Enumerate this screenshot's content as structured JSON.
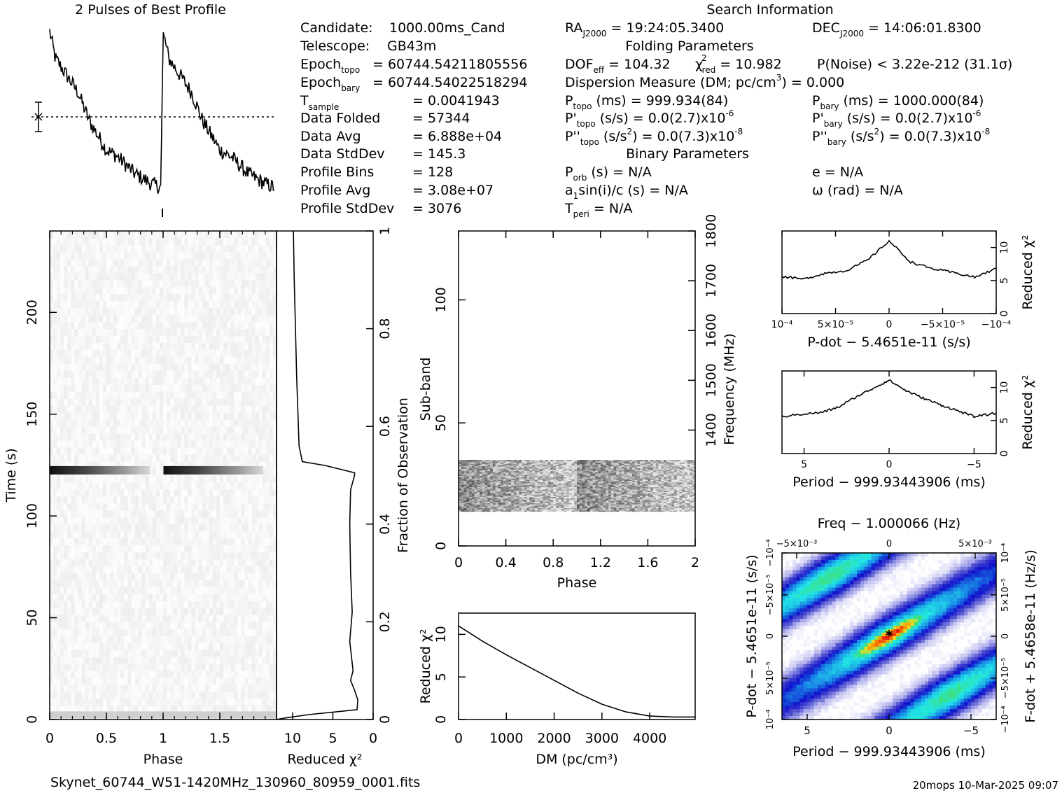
{
  "header": {
    "profile_title": "2 Pulses of Best Profile",
    "search_title": "Search Information",
    "file_name": "Skynet_60744_W51-1420MHz_130960_80959_0001.fits",
    "footer_stamp": "20mops 10-Mar-2025 09:07"
  },
  "info": {
    "candidate_label": "Candidate:",
    "candidate_value": "1000.00ms_Cand",
    "telescope_label": "Telescope:",
    "telescope_value": "GB43m",
    "epoch_topo_label": "Epoch",
    "epoch_topo_sub": "topo",
    "epoch_topo_value": "= 60744.54211805556",
    "epoch_bary_label": "Epoch",
    "epoch_bary_sub": "bary",
    "epoch_bary_value": "= 60744.54022518294",
    "tsample_label": "T",
    "tsample_sub": "sample",
    "tsample_value": "=   0.0041943",
    "data_folded_label": "Data Folded",
    "data_folded_value": "=   57344",
    "data_avg_label": "Data Avg",
    "data_avg_value": "=   6.888e+04",
    "data_std_label": "Data StdDev",
    "data_std_value": "=   145.3",
    "profile_bins_label": "Profile Bins",
    "profile_bins_value": "=   128",
    "profile_avg_label": "Profile Avg",
    "profile_avg_value": "=   3.08e+07",
    "profile_std_label": "Profile StdDev",
    "profile_std_value": "=   3076"
  },
  "search": {
    "ra_label": "RA",
    "ra_sub": "J2000",
    "ra_value": "= 19:24:05.3400",
    "dec_label": "DEC",
    "dec_sub": "J2000",
    "dec_value": "= 14:06:01.8300",
    "folding_title": "Folding Parameters",
    "dof_label": "DOF",
    "dof_sub": "eff",
    "dof_value": "= 104.32",
    "chi_label": "χ",
    "chi_sup": "2",
    "chi_sub": "red",
    "chi_value": "= 10.982",
    "pnoise": "P(Noise) < 3.22e-212   (31.1σ)",
    "dm_line_a": "Dispersion Measure (DM; pc/cm",
    "dm_line_sup": "3",
    "dm_line_b": ") = 0.000",
    "ptopo_label": "P",
    "ptopo_sub": "topo",
    "ptopo_value": "(ms)  =   999.934(84)",
    "pbary_label": "P",
    "pbary_sub": "bary",
    "pbary_value": "(ms)  =   1000.000(84)",
    "pdtopo_label": "P'",
    "pdtopo_sub": "topo",
    "pdtopo_value": "(s/s) = 0.0(2.7)x10",
    "pdtopo_exp": "-6",
    "pdbary_label": "P'",
    "pdbary_sub": "bary",
    "pdbary_value": "(s/s) = 0.0(2.7)x10",
    "pdbary_exp": "-6",
    "pddtopo_label": "P''",
    "pddtopo_sub": "topo",
    "pddtopo_value_a": "(s/s",
    "pddtopo_sup": "2",
    "pddtopo_value_b": ") = 0.0(7.3)x10",
    "pddtopo_exp": "-8",
    "pddbary_label": "P''",
    "pddbary_sub": "bary",
    "pddbary_value_a": "(s/s",
    "pddbary_sup": "2",
    "pddbary_value_b": ") = 0.0(7.3)x10",
    "pddbary_exp": "-8",
    "binary_title": "Binary Parameters",
    "porb_label": "P",
    "porb_sub": "orb",
    "porb_value": "(s) = N/A",
    "e_value": "e = N/A",
    "a1_label_a": "a",
    "a1_sub": "1",
    "a1_label_b": "sin(i)/c (s) = N/A",
    "omega_value": "ω (rad) = N/A",
    "tperi_label": "T",
    "tperi_sub": "peri",
    "tperi_value": "= N/A"
  },
  "chart_data": [
    {
      "type": "line",
      "panel": "profile",
      "title": "2 Pulses of Best Profile",
      "x_range": [
        0,
        2
      ],
      "ylabel": "",
      "xlabel": "",
      "note": "two repeated pulse profiles; linear ramp with sharp jump at phase 1",
      "control_points": [
        [
          0.0,
          0.98
        ],
        [
          0.05,
          0.82
        ],
        [
          0.15,
          0.72
        ],
        [
          0.25,
          0.62
        ],
        [
          0.35,
          0.45
        ],
        [
          0.5,
          0.28
        ],
        [
          0.6,
          0.24
        ],
        [
          0.75,
          0.14
        ],
        [
          0.9,
          0.08
        ],
        [
          0.98,
          0.06
        ],
        [
          1.0,
          0.98
        ],
        [
          1.05,
          0.82
        ],
        [
          1.15,
          0.72
        ],
        [
          1.25,
          0.62
        ],
        [
          1.35,
          0.45
        ],
        [
          1.5,
          0.28
        ],
        [
          1.6,
          0.24
        ],
        [
          1.75,
          0.14
        ],
        [
          1.9,
          0.08
        ],
        [
          1.98,
          0.06
        ]
      ],
      "reference_line": "dotted mean level with error bar"
    },
    {
      "type": "heatmap",
      "panel": "time-phase",
      "xlabel": "Phase",
      "ylabel": "Time (s)",
      "xlim": [
        0,
        2
      ],
      "ylim": [
        0,
        240
      ],
      "x_ticks": [
        "0",
        "0.5",
        "1",
        "1.5"
      ],
      "y_ticks": [
        "0",
        "50",
        "100",
        "150",
        "200"
      ],
      "features": [
        {
          "time": 122,
          "darkness": 0.9,
          "pattern": "bright band, fading with phase, repeats at phase 1"
        },
        {
          "time": 3,
          "darkness": 0.4,
          "pattern": "grey band near start"
        }
      ]
    },
    {
      "type": "line",
      "panel": "time-chi2",
      "xlabel": "Reduced χ²",
      "ylabel": "Fraction of Observation",
      "x_ticks": [
        "10",
        "5",
        "0"
      ],
      "y_ticks": [
        "0",
        "0.2",
        "0.4",
        "0.6",
        "0.8",
        "1"
      ],
      "xlim": [
        12,
        0
      ],
      "ylim": [
        0,
        1
      ],
      "points": [
        [
          12.0,
          0.0
        ],
        [
          11.0,
          0.003
        ],
        [
          8.0,
          0.01
        ],
        [
          2.0,
          0.02
        ],
        [
          1.9,
          0.04
        ],
        [
          2.3,
          0.06
        ],
        [
          2.8,
          0.08
        ],
        [
          2.5,
          0.1
        ],
        [
          2.9,
          0.16
        ],
        [
          2.6,
          0.22
        ],
        [
          2.8,
          0.3
        ],
        [
          2.9,
          0.4
        ],
        [
          2.8,
          0.47
        ],
        [
          2.3,
          0.5
        ],
        [
          2.3,
          0.505
        ],
        [
          6.0,
          0.52
        ],
        [
          8.8,
          0.528
        ],
        [
          9.2,
          0.56
        ],
        [
          9.5,
          0.7
        ],
        [
          9.8,
          0.9
        ],
        [
          9.9,
          1.0
        ]
      ]
    },
    {
      "type": "heatmap",
      "panel": "subband-phase",
      "xlabel": "Phase",
      "ylabel": "Sub-band",
      "y2label": "Frequency (MHz)",
      "xlim": [
        0,
        2
      ],
      "ylim": [
        0,
        128
      ],
      "x_ticks": [
        "0",
        "0.4",
        "0.8",
        "1.2",
        "1.6",
        "2"
      ],
      "y_ticks": [
        "0",
        "50",
        "100"
      ],
      "y2_ticks": [
        "1400",
        "1500",
        "1600",
        "1700",
        "1800"
      ],
      "features": [
        {
          "subband_range": [
            14,
            35
          ],
          "pattern": "noisy dark band, darker toward phase 1 and 2"
        }
      ]
    },
    {
      "type": "line",
      "panel": "dm-chi2",
      "xlabel": "DM (pc/cm³)",
      "ylabel": "Reduced χ²",
      "xlim": [
        0,
        4950
      ],
      "ylim": [
        0,
        12.5
      ],
      "x_ticks": [
        "0",
        "1000",
        "2000",
        "3000",
        "4000"
      ],
      "y_ticks": [
        "0",
        "5",
        "10"
      ],
      "points": [
        [
          0,
          11.0
        ],
        [
          500,
          9.2
        ],
        [
          1000,
          7.6
        ],
        [
          1500,
          6.1
        ],
        [
          2000,
          4.6
        ],
        [
          2500,
          3.1
        ],
        [
          3000,
          1.8
        ],
        [
          3500,
          0.9
        ],
        [
          4000,
          0.4
        ],
        [
          4500,
          0.3
        ],
        [
          4950,
          0.3
        ]
      ]
    },
    {
      "type": "line",
      "panel": "pdot-chi2",
      "xlabel": "P-dot − 5.4651e-11 (s/s)",
      "ylabel": "Reduced χ²",
      "xlim": [
        0.0001,
        -0.0001
      ],
      "ylim": [
        0,
        12.5
      ],
      "x_ticks": [
        "10⁻⁴",
        "5×10⁻⁵",
        "0",
        "−5×10⁻⁵",
        "−10⁻⁴"
      ],
      "y_ticks": [
        "0",
        "5",
        "10"
      ],
      "points": [
        [
          0.0001,
          5.6
        ],
        [
          8e-05,
          5.2
        ],
        [
          6e-05,
          6.1
        ],
        [
          4e-05,
          6.5
        ],
        [
          2e-05,
          8.1
        ],
        [
          0.0,
          11.0
        ],
        [
          -2e-05,
          7.8
        ],
        [
          -4e-05,
          6.8
        ],
        [
          -6e-05,
          6.2
        ],
        [
          -8e-05,
          5.5
        ],
        [
          -0.0001,
          6.8
        ]
      ]
    },
    {
      "type": "line",
      "panel": "period-chi2",
      "xlabel": "Period − 999.93443906 (ms)",
      "ylabel": "Reduced χ²",
      "xlim": [
        6.3,
        -6.3
      ],
      "ylim": [
        0,
        12.5
      ],
      "x_ticks": [
        "5",
        "0",
        "−5"
      ],
      "y_ticks": [
        "0",
        "5",
        "10"
      ],
      "points": [
        [
          6.3,
          5.6
        ],
        [
          5,
          6.0
        ],
        [
          4,
          6.2
        ],
        [
          3,
          7.0
        ],
        [
          2,
          8.5
        ],
        [
          1,
          9.8
        ],
        [
          0,
          11.1
        ],
        [
          -1,
          9.5
        ],
        [
          -2,
          8.4
        ],
        [
          -3,
          7.4
        ],
        [
          -4,
          6.5
        ],
        [
          -5,
          5.6
        ],
        [
          -6.3,
          6.1
        ]
      ]
    },
    {
      "type": "heatmap",
      "panel": "period-pdot",
      "title": "Freq − 1.000066 (Hz)",
      "xlabel": "Period − 999.93443906 (ms)",
      "ylabel": "P-dot − 5.4651e-11 (s/s)",
      "y2label": "F-dot + 5.4658e-11 (Hz/s)",
      "x_ticks": [
        "5",
        "0",
        "−5"
      ],
      "top_ticks": [
        "−5×10⁻³",
        "0",
        "5×10⁻³"
      ],
      "y_ticks": [
        "10⁻⁴",
        "5×10⁻⁵",
        "0",
        "−5×10⁻⁵",
        "−10⁻⁴"
      ],
      "y2_ticks": [
        "−10⁻⁴",
        "−5×10⁻⁵",
        "0",
        "5×10⁻⁵",
        "10⁻⁴"
      ],
      "best_point": [
        0,
        0
      ],
      "colormap": [
        "#ffffff",
        "#b6b6ee",
        "#5050d0",
        "#1010cc",
        "#1a8fe8",
        "#22e6e6",
        "#40e070",
        "#f0e020",
        "#ff8800",
        "#e01010"
      ]
    }
  ]
}
